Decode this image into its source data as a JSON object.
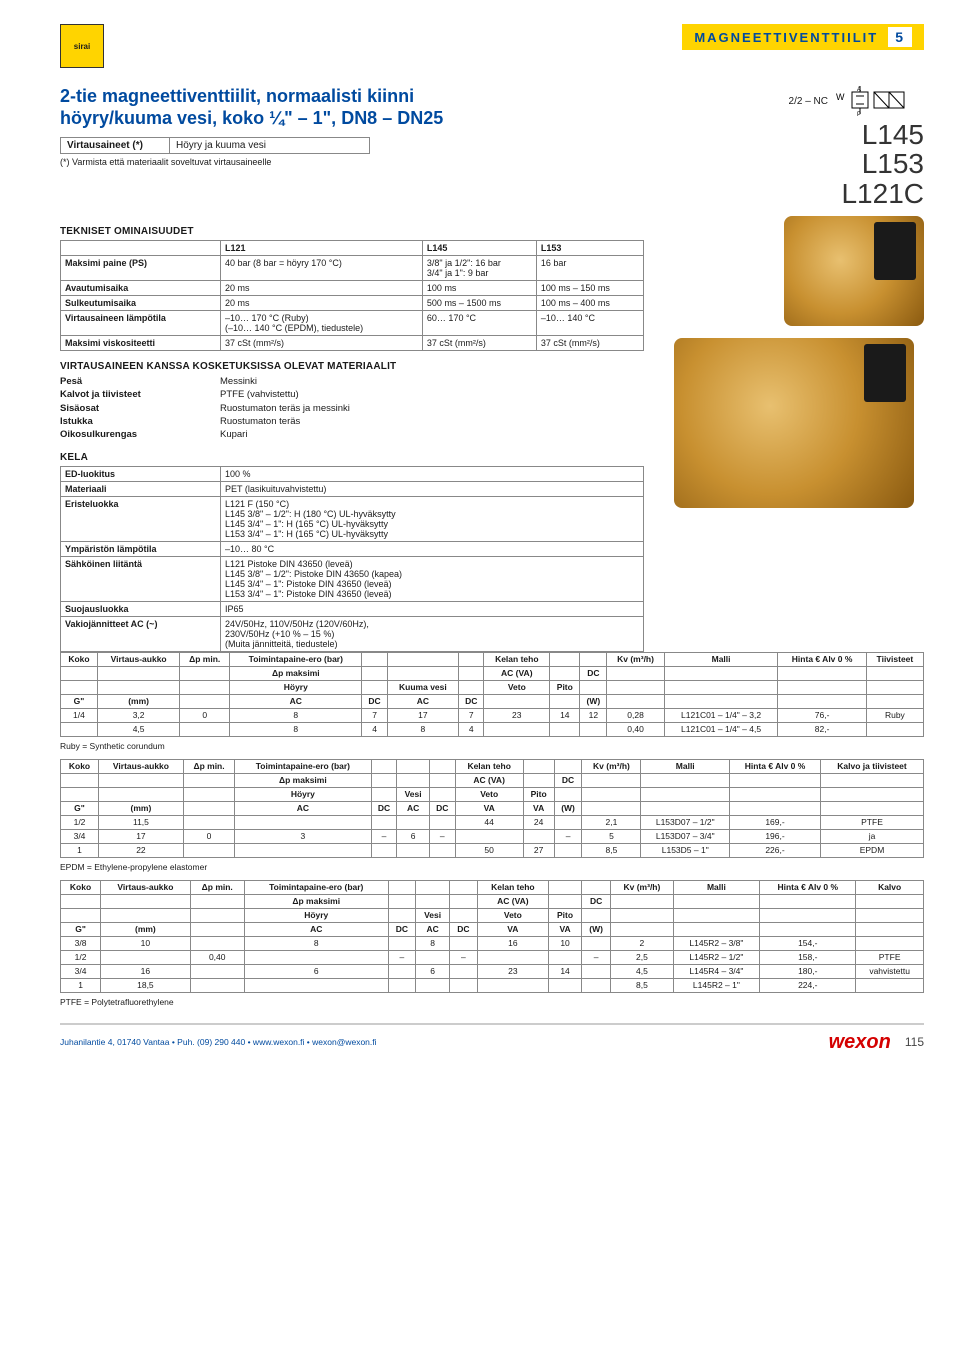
{
  "header": {
    "category_title": "MAGNEETTIVENTTIILIT",
    "category_number": "5"
  },
  "intro": {
    "title_line1": "2-tie magneettiventtiilit, normaalisti kiinni",
    "title_line2": "höyry/kuuma vesi, koko ¼\" – 1\", DN8 – DN25",
    "flow_label": "Virtausaineet (*)",
    "flow_value": "Höyry ja kuuma vesi",
    "flow_note": "(*) Varmista että materiaalit soveltuvat virtausaineelle",
    "symbol_label": "2/2 – NC",
    "models": [
      "L145",
      "L153",
      "L121C"
    ]
  },
  "tech": {
    "heading": "TEKNISET OMINAISUUDET",
    "cols": [
      "L121",
      "L145",
      "L153"
    ],
    "rows": [
      {
        "k": "Maksimi paine (PS)",
        "v": [
          "40 bar (8 bar = höyry 170 °C)",
          "3/8\" ja 1/2\": 16 bar\n3/4\" ja 1\": 9 bar",
          "16 bar"
        ]
      },
      {
        "k": "Avautumisaika",
        "v": [
          "20 ms",
          "100 ms",
          "100 ms – 150 ms"
        ]
      },
      {
        "k": "Sulkeutumisaika",
        "v": [
          "20 ms",
          "500 ms – 1500 ms",
          "100 ms – 400 ms"
        ]
      },
      {
        "k": "Virtausaineen lämpötila",
        "v": [
          "–10… 170 °C (Ruby)\n(–10… 140 °C (EPDM), tiedustele)",
          "60… 170 °C",
          "–10… 140 °C"
        ]
      },
      {
        "k": "Maksimi viskositeetti",
        "v": [
          "37 cSt (mm²/s)",
          "37 cSt (mm²/s)",
          "37 cSt (mm²/s)"
        ]
      }
    ]
  },
  "materials": {
    "heading": "VIRTAUSAINEEN KANSSA KOSKETUKSISSA OLEVAT MATERIAALIT",
    "items": [
      {
        "k": "Pesä",
        "v": "Messinki"
      },
      {
        "k": "Kalvot ja tiivisteet",
        "v": "PTFE (vahvistettu)"
      },
      {
        "k": "Sisäosat",
        "v": "Ruostumaton teräs ja messinki"
      },
      {
        "k": "Istukka",
        "v": "Ruostumaton teräs"
      },
      {
        "k": "Oikosulkurengas",
        "v": "Kupari"
      }
    ]
  },
  "kela": {
    "heading": "KELA",
    "rows": [
      {
        "k": "ED-luokitus",
        "v": "100 %"
      },
      {
        "k": "Materiaali",
        "v": "PET (lasikuituvahvistettu)"
      },
      {
        "k": "Eristeluokka",
        "v": "L121   F (150 °C)\nL145   3/8\" – 1/2\": H (180 °C) UL-hyväksytty\nL145   3/4\" – 1\": H (165 °C) UL-hyväksytty\nL153   3/4\" – 1\": H (165 °C) UL-hyväksytty"
      },
      {
        "k": "Ympäristön lämpötila",
        "v": "–10… 80 °C"
      },
      {
        "k": "Sähköinen liitäntä",
        "v": "L121   Pistoke DIN 43650 (leveä)\nL145   3/8\" – 1/2\": Pistoke DIN 43650 (kapea)\nL145   3/4\" – 1\": Pistoke DIN 43650 (leveä)\nL153   3/4\" – 1\": Pistoke DIN 43650 (leveä)"
      },
      {
        "k": "Suojausluokka",
        "v": "IP65"
      },
      {
        "k": "Vakiojännitteet AC (~)",
        "v": "24V/50Hz, 110V/50Hz (120V/60Hz),\n230V/50Hz (+10 % – 15 %)\n(Muita jännitteitä, tiedustele)"
      }
    ]
  },
  "size_tables": {
    "t1": {
      "header_top": [
        "Koko",
        "Virtaus-aukko",
        "Δp min.",
        "Toimintapaine-ero (bar)",
        "",
        "",
        "",
        "Kelan teho",
        "",
        "",
        "Kv (m³/h)",
        "Malli",
        "Hinta € Alv 0 %",
        "Tiivisteet"
      ],
      "header_sub1": [
        "",
        "",
        "",
        "Δp maksimi",
        "",
        "",
        "",
        "AC (VA)",
        "",
        "DC",
        "",
        "",
        "",
        ""
      ],
      "header_sub2": [
        "",
        "",
        "",
        "Höyry",
        "",
        "Kuuma vesi",
        "",
        "Veto",
        "Pito",
        "",
        "",
        "",
        "",
        ""
      ],
      "header_sub3": [
        "G\"",
        "(mm)",
        "",
        "AC",
        "DC",
        "AC",
        "DC",
        "",
        "",
        "(W)",
        "",
        "",
        "",
        ""
      ],
      "rows": [
        [
          "1/4",
          "3,2",
          "0",
          "8",
          "7",
          "17",
          "7",
          "23",
          "14",
          "12",
          "0,28",
          "L121C01 – 1/4\" – 3,2",
          "76,-",
          "Ruby"
        ],
        [
          "",
          "4,5",
          "",
          "8",
          "4",
          "8",
          "4",
          "",
          "",
          "",
          "0,40",
          "L121C01 – 1/4\" – 4,5",
          "82,-",
          ""
        ]
      ],
      "note": "Ruby = Synthetic corundum"
    },
    "t2": {
      "header_top": [
        "Koko",
        "Virtaus-aukko",
        "Δp min.",
        "Toimintapaine-ero (bar)",
        "",
        "",
        "",
        "Kelan teho",
        "",
        "",
        "Kv (m³/h)",
        "Malli",
        "Hinta € Alv 0 %",
        "Kalvo ja tiivisteet"
      ],
      "header_sub1": [
        "",
        "",
        "",
        "Δp maksimi",
        "",
        "",
        "",
        "AC (VA)",
        "",
        "DC",
        "",
        "",
        "",
        ""
      ],
      "header_sub2": [
        "",
        "",
        "",
        "Höyry",
        "",
        "Vesi",
        "",
        "Veto",
        "Pito",
        "",
        "",
        "",
        "",
        ""
      ],
      "header_sub3": [
        "G\"",
        "(mm)",
        "",
        "AC",
        "DC",
        "AC",
        "DC",
        "VA",
        "VA",
        "(W)",
        "",
        "",
        "",
        ""
      ],
      "rows": [
        [
          "1/2",
          "11,5",
          "",
          "",
          "",
          "",
          "",
          "44",
          "24",
          "",
          "2,1",
          "L153D07 – 1/2\"",
          "169,-",
          "PTFE"
        ],
        [
          "3/4",
          "17",
          "0",
          "3",
          "–",
          "6",
          "–",
          "",
          "",
          "–",
          "5",
          "L153D07 – 3/4\"",
          "196,-",
          "ja"
        ],
        [
          "1",
          "22",
          "",
          "",
          "",
          "",
          "",
          "50",
          "27",
          "",
          "8,5",
          "L153D5 – 1\"",
          "226,-",
          "EPDM"
        ]
      ],
      "note": "EPDM = Ethylene-propylene elastomer"
    },
    "t3": {
      "header_top": [
        "Koko",
        "Virtaus-aukko",
        "Δp min.",
        "Toimintapaine-ero (bar)",
        "",
        "",
        "",
        "Kelan teho",
        "",
        "",
        "Kv (m³/h)",
        "Malli",
        "Hinta € Alv 0 %",
        "Kalvo"
      ],
      "header_sub1": [
        "",
        "",
        "",
        "Δp maksimi",
        "",
        "",
        "",
        "AC (VA)",
        "",
        "DC",
        "",
        "",
        "",
        ""
      ],
      "header_sub2": [
        "",
        "",
        "",
        "Höyry",
        "",
        "Vesi",
        "",
        "Veto",
        "Pito",
        "",
        "",
        "",
        "",
        ""
      ],
      "header_sub3": [
        "G\"",
        "(mm)",
        "",
        "AC",
        "DC",
        "AC",
        "DC",
        "VA",
        "VA",
        "(W)",
        "",
        "",
        "",
        ""
      ],
      "rows": [
        [
          "3/8",
          "10",
          "",
          "8",
          "",
          "8",
          "",
          "16",
          "10",
          "",
          "2",
          "L145R2 – 3/8\"",
          "154,-",
          ""
        ],
        [
          "1/2",
          "",
          "0,40",
          "",
          "–",
          "",
          "–",
          "",
          "",
          "–",
          "2,5",
          "L145R2 – 1/2\"",
          "158,-",
          "PTFE"
        ],
        [
          "3/4",
          "16",
          "",
          "6",
          "",
          "6",
          "",
          "23",
          "14",
          "",
          "4,5",
          "L145R4 – 3/4\"",
          "180,-",
          "vahvistettu"
        ],
        [
          "1",
          "18,5",
          "",
          "",
          "",
          "",
          "",
          "",
          "",
          "",
          "8,5",
          "L145R2 – 1\"",
          "224,-",
          ""
        ]
      ],
      "note": "PTFE = Polytetrafluorethylene"
    }
  },
  "footer": {
    "contact": "Juhanilantie 4, 01740 Vantaa • Puh. (09) 290 440 • www.wexon.fi • wexon@wexon.fi",
    "brand": "wexon",
    "page": "115"
  },
  "colors": {
    "accent_yellow": "#ffd400",
    "brand_blue": "#004a9f",
    "brand_red": "#d40000",
    "border_gray": "#888888"
  }
}
